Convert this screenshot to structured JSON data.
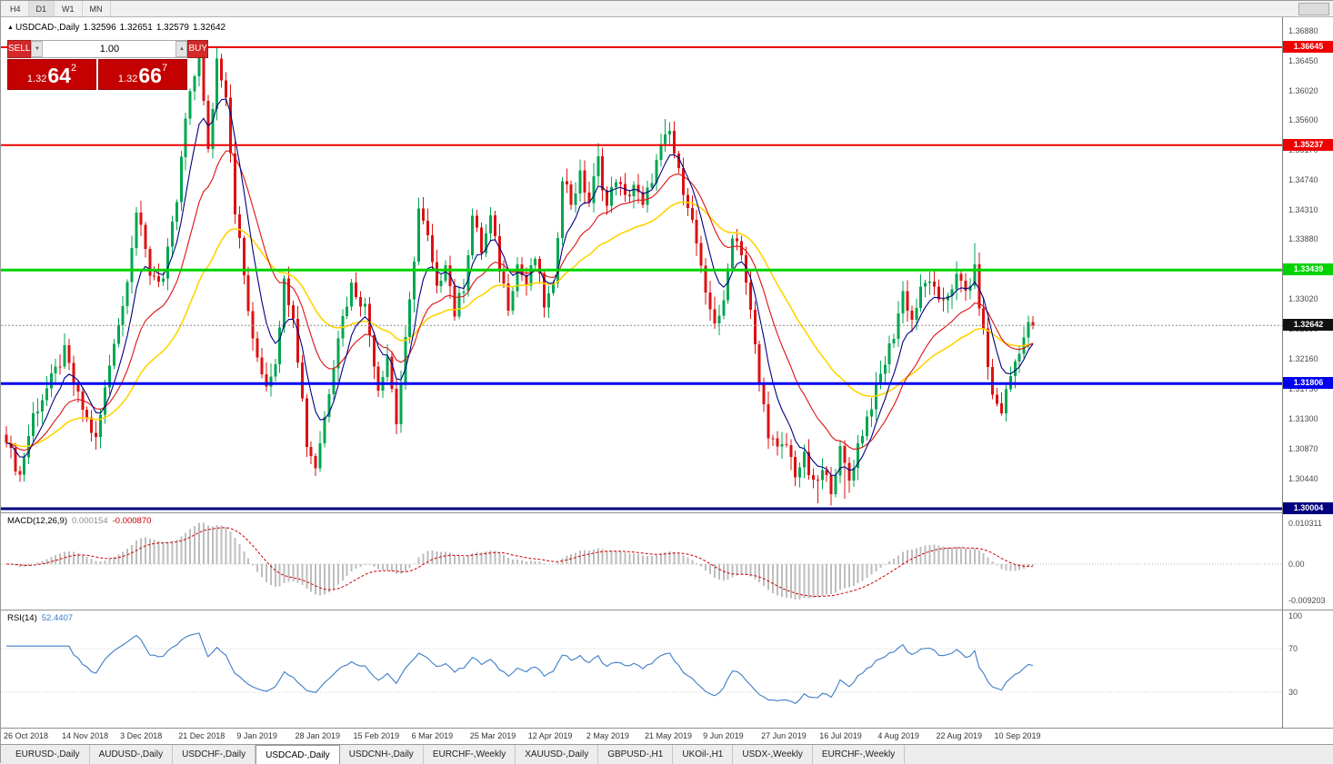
{
  "toolbar": {
    "timeframes": [
      "H4",
      "D1",
      "W1",
      "MN"
    ],
    "active": "D1"
  },
  "title": {
    "arrow": "▲",
    "symbol": "USDCAD-,Daily",
    "ohlc": [
      "1.32596",
      "1.32651",
      "1.32579",
      "1.32642"
    ]
  },
  "trade_panel": {
    "sell_label": "SELL",
    "buy_label": "BUY",
    "volume": "1.00",
    "spinner_down": "▼",
    "spinner_up": "▲",
    "sell_price_prefix": "1.32",
    "sell_price_big": "64",
    "sell_price_sup": "2",
    "buy_price_prefix": "1.32",
    "buy_price_big": "66",
    "buy_price_sup": "7"
  },
  "price_axis": {
    "labels": [
      "1.36880",
      "1.36450",
      "1.36020",
      "1.35600",
      "1.35170",
      "1.34740",
      "1.34310",
      "1.33880",
      "1.33450",
      "1.33020",
      "1.32590",
      "1.32160",
      "1.31730",
      "1.31300",
      "1.30870",
      "1.30440"
    ]
  },
  "macd": {
    "name": "MACD(12,26,9)",
    "main": "0.000154",
    "signal": "-0.000870",
    "axis_labels": [
      "0.010311",
      "0.00",
      "-0.009203"
    ]
  },
  "rsi": {
    "name": "RSI(14)",
    "value": "52.4407",
    "axis_labels": [
      "100",
      "70",
      "30"
    ]
  },
  "date_axis": [
    "26 Oct 2018",
    "14 Nov 2018",
    "3 Dec 2018",
    "21 Dec 2018",
    "9 Jan 2019",
    "28 Jan 2019",
    "15 Feb 2019",
    "6 Mar 2019",
    "25 Mar 2019",
    "12 Apr 2019",
    "2 May 2019",
    "21 May 2019",
    "9 Jun 2019",
    "27 Jun 2019",
    "16 Jul 2019",
    "4 Aug 2019",
    "22 Aug 2019",
    "10 Sep 2019"
  ],
  "tabs": {
    "items": [
      "EURUSD-,Daily",
      "AUDUSD-,Daily",
      "USDCHF-,Daily",
      "USDCAD-,Daily",
      "USDCNH-,Daily",
      "EURCHF-,Weekly",
      "XAUUSD-,Daily",
      "GBPUSD-,H1",
      "UKOil-,H1",
      "USDX-,Weekly",
      "EURCHF-,Weekly"
    ],
    "active_index": 3
  },
  "colors": {
    "bull": "#00a651",
    "bear": "#dc1111",
    "macd_bar": "#bdbdbd",
    "macd_signal": "#cc0000",
    "rsi_line": "#3d7dc8",
    "current_price_line": "#8c8c8c",
    "badge_current": "#111111",
    "panel_red": "#d32929",
    "price_box_red": "#c40000"
  },
  "chart_data": {
    "type": "candlestick",
    "symbol": "USDCAD",
    "timeframe": "Daily",
    "price_range_visible": [
      1.30004,
      1.3688
    ],
    "candle_count": 230,
    "last_close": 1.32642,
    "close_path_anchors": [
      [
        0,
        1.3095
      ],
      [
        3,
        1.3048
      ],
      [
        6,
        1.3135
      ],
      [
        10,
        1.3185
      ],
      [
        13,
        1.3225
      ],
      [
        16,
        1.316
      ],
      [
        20,
        1.3098
      ],
      [
        24,
        1.3245
      ],
      [
        26,
        1.3292
      ],
      [
        29,
        1.3428
      ],
      [
        32,
        1.334
      ],
      [
        35,
        1.333
      ],
      [
        38,
        1.3442
      ],
      [
        40,
        1.356
      ],
      [
        43,
        1.3655
      ],
      [
        45,
        1.3512
      ],
      [
        47,
        1.3648
      ],
      [
        49,
        1.36
      ],
      [
        51,
        1.3432
      ],
      [
        53,
        1.3335
      ],
      [
        55,
        1.3238
      ],
      [
        58,
        1.318
      ],
      [
        60,
        1.3215
      ],
      [
        62,
        1.3325
      ],
      [
        64,
        1.3282
      ],
      [
        67,
        1.3095
      ],
      [
        69,
        1.3062
      ],
      [
        71,
        1.3132
      ],
      [
        74,
        1.3252
      ],
      [
        77,
        1.3322
      ],
      [
        80,
        1.329
      ],
      [
        83,
        1.3175
      ],
      [
        85,
        1.3222
      ],
      [
        87,
        1.3125
      ],
      [
        90,
        1.3295
      ],
      [
        92,
        1.3432
      ],
      [
        94,
        1.3388
      ],
      [
        96,
        1.3312
      ],
      [
        98,
        1.336
      ],
      [
        100,
        1.3282
      ],
      [
        102,
        1.3322
      ],
      [
        104,
        1.3422
      ],
      [
        106,
        1.3372
      ],
      [
        108,
        1.3418
      ],
      [
        110,
        1.3348
      ],
      [
        112,
        1.3295
      ],
      [
        114,
        1.3352
      ],
      [
        116,
        1.3322
      ],
      [
        118,
        1.3362
      ],
      [
        120,
        1.3295
      ],
      [
        122,
        1.3315
      ],
      [
        124,
        1.3482
      ],
      [
        126,
        1.3442
      ],
      [
        128,
        1.3478
      ],
      [
        130,
        1.3442
      ],
      [
        132,
        1.3502
      ],
      [
        134,
        1.3435
      ],
      [
        136,
        1.3478
      ],
      [
        138,
        1.3445
      ],
      [
        140,
        1.3468
      ],
      [
        142,
        1.3432
      ],
      [
        144,
        1.3478
      ],
      [
        146,
        1.3518
      ],
      [
        148,
        1.3542
      ],
      [
        150,
        1.3482
      ],
      [
        152,
        1.3442
      ],
      [
        154,
        1.3382
      ],
      [
        156,
        1.3302
      ],
      [
        158,
        1.3272
      ],
      [
        160,
        1.3292
      ],
      [
        162,
        1.3398
      ],
      [
        164,
        1.3372
      ],
      [
        166,
        1.3282
      ],
      [
        168,
        1.3182
      ],
      [
        170,
        1.3112
      ],
      [
        172,
        1.3082
      ],
      [
        174,
        1.3092
      ],
      [
        176,
        1.3052
      ],
      [
        178,
        1.3072
      ],
      [
        180,
        1.3032
      ],
      [
        182,
        1.3052
      ],
      [
        184,
        1.3032
      ],
      [
        186,
        1.3082
      ],
      [
        188,
        1.3042
      ],
      [
        190,
        1.3092
      ],
      [
        192,
        1.3132
      ],
      [
        194,
        1.3172
      ],
      [
        196,
        1.3212
      ],
      [
        198,
        1.3252
      ],
      [
        200,
        1.3312
      ],
      [
        202,
        1.3272
      ],
      [
        204,
        1.3312
      ],
      [
        206,
        1.3332
      ],
      [
        208,
        1.3292
      ],
      [
        210,
        1.3312
      ],
      [
        212,
        1.3332
      ],
      [
        214,
        1.3312
      ],
      [
        216,
        1.3342
      ],
      [
        218,
        1.3252
      ],
      [
        220,
        1.3162
      ],
      [
        222,
        1.3142
      ],
      [
        224,
        1.3192
      ],
      [
        226,
        1.3232
      ],
      [
        228,
        1.3262
      ],
      [
        229,
        1.32642
      ]
    ],
    "spikes": [
      {
        "i": 43,
        "high": 1.3663
      },
      {
        "i": 147,
        "high": 1.3561
      },
      {
        "i": 216,
        "high": 1.3383
      },
      {
        "i": 181,
        "low": 1.3008
      },
      {
        "i": 187,
        "low": 1.3015
      }
    ],
    "horizontal_levels": [
      {
        "price": 1.36645,
        "label": "1.36645",
        "color": "#ee0000",
        "width": 2
      },
      {
        "price": 1.35237,
        "label": "1.35237",
        "color": "#ee0000",
        "width": 2
      },
      {
        "price": 1.33439,
        "label": "1.33439",
        "color": "#00d300",
        "width": 3
      },
      {
        "price": 1.31806,
        "label": "1.31806",
        "color": "#0000ee",
        "width": 3
      },
      {
        "price": 1.30004,
        "label": "1.30004",
        "color": "#000080",
        "width": 3
      }
    ],
    "current_price": {
      "label": "1.32642",
      "price": 1.32642
    },
    "moving_averages": [
      {
        "period": 40,
        "color": "#ffd400",
        "width": 1.6,
        "name": "slow-ma"
      },
      {
        "period": 18,
        "color": "#dd1111",
        "width": 1.1,
        "name": "medium-ma"
      },
      {
        "period": 7,
        "color": "#000080",
        "width": 1.1,
        "name": "fast-ma"
      }
    ],
    "macd": {
      "params": [
        12,
        26,
        9
      ],
      "main_value": 0.000154,
      "signal_value": -0.00087,
      "axis_max": 0.010311,
      "axis_min": -0.009203
    },
    "rsi": {
      "period": 14,
      "last": 52.4407,
      "levels": [
        70,
        30
      ]
    }
  }
}
